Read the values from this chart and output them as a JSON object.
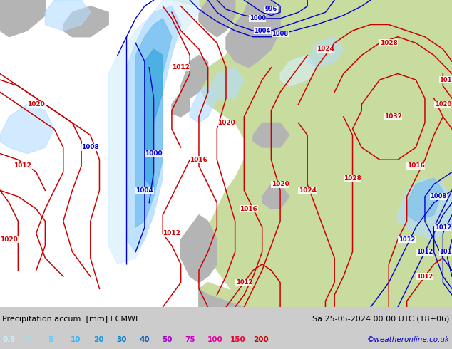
{
  "title_left": "Precipitation accum. [mm] ECMWF",
  "title_right": "Sa 25-05-2024 00:00 UTC (18+06)",
  "credit": "©weatheronline.co.uk",
  "legend_values": [
    "0.5",
    "2",
    "5",
    "10",
    "20",
    "30",
    "40",
    "50",
    "75",
    "100",
    "150",
    "200"
  ],
  "legend_colors": [
    "#c8f0ff",
    "#96deff",
    "#64caff",
    "#32b4ff",
    "#1496e6",
    "#0078c8",
    "#005ab4",
    "#a000c8",
    "#c800c8",
    "#e60096",
    "#e60032",
    "#c80000"
  ],
  "bg_color": "#ffffff",
  "left_label_color": "#000000",
  "right_label_color": "#000000",
  "credit_color": "#0000cc",
  "fig_width": 6.34,
  "fig_height": 4.9,
  "ocean_color": "#dce8f0",
  "land_green": "#c8dca0",
  "land_gray": "#b4b4b4",
  "contour_red": "#cc0000",
  "contour_blue": "#0000cc",
  "precip_very_light": "#d8f0ff",
  "precip_light": "#b4dcff",
  "precip_medium": "#78c0f0",
  "precip_dark": "#3ca8e0"
}
